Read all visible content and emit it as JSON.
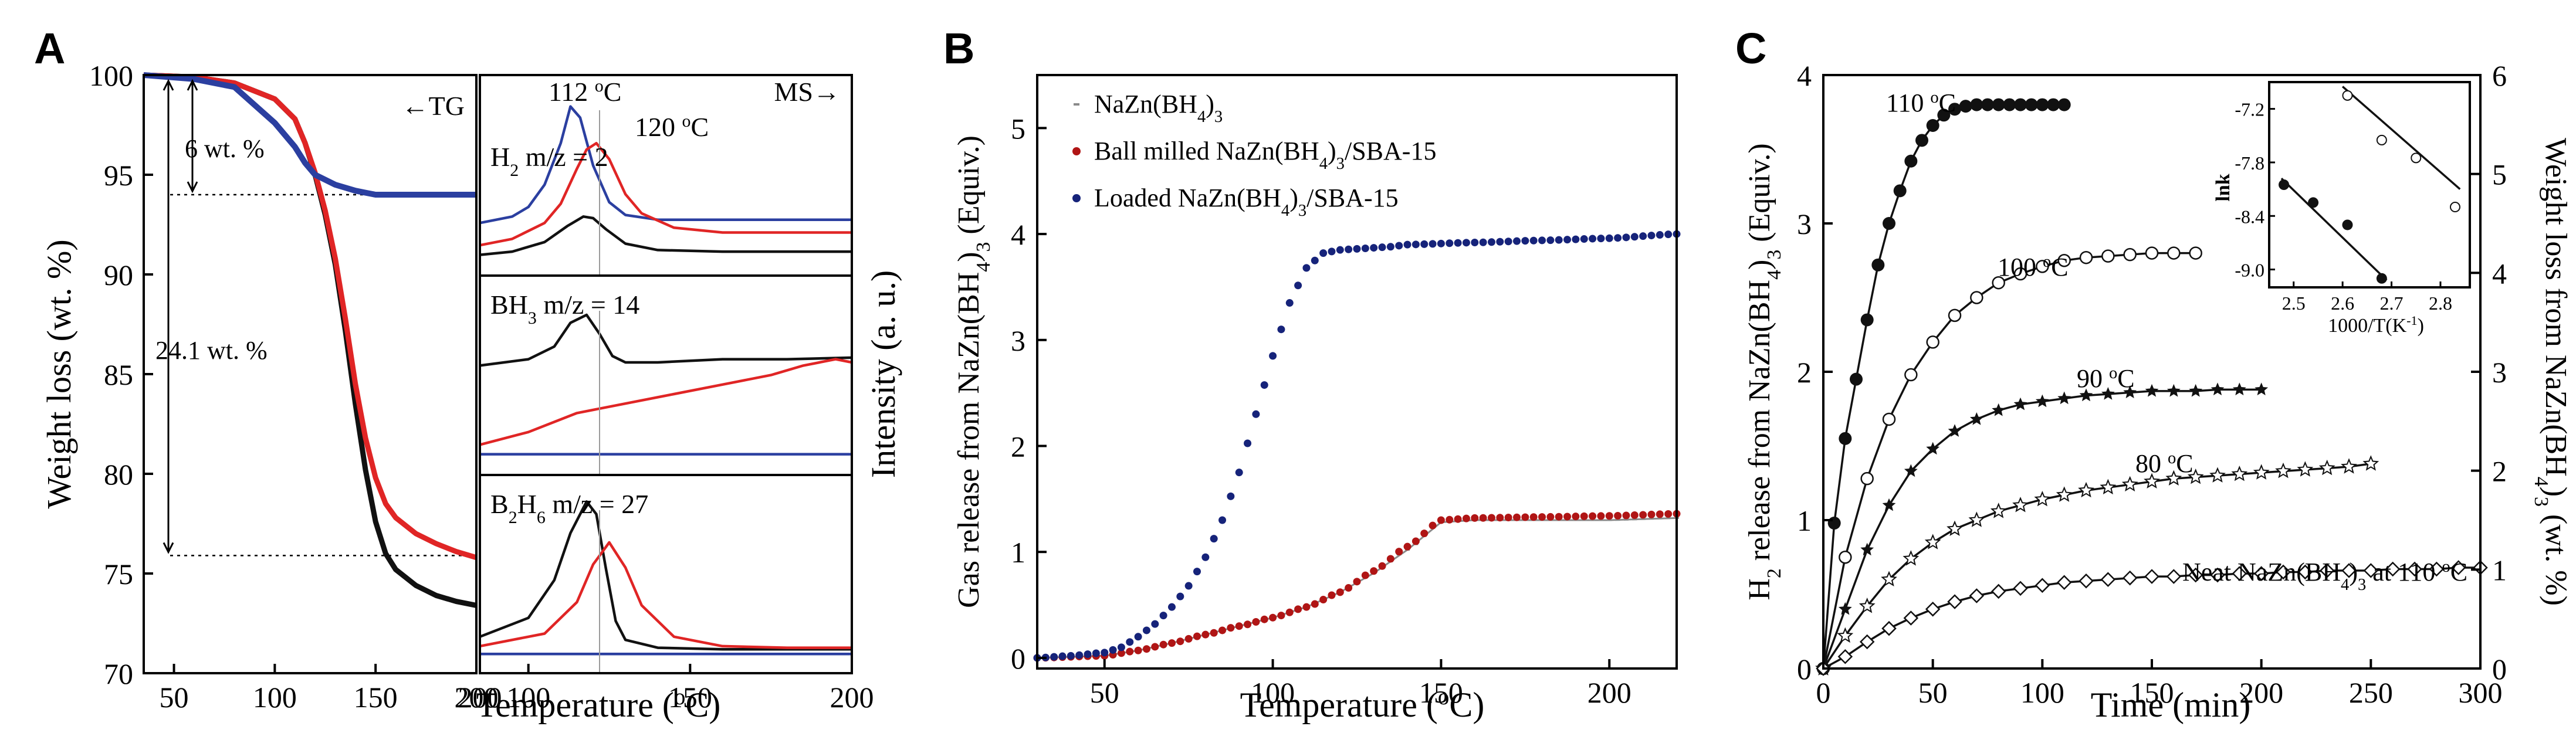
{
  "figure": {
    "panels": [
      "A",
      "B",
      "C"
    ]
  },
  "colors": {
    "black": "#111111",
    "red": "#e02525",
    "blue": "#2b3fa0",
    "navy": "#16237a",
    "darkred": "#b01515",
    "grey": "#8a8a8a"
  },
  "chart_data": [
    {
      "id": "A-TG",
      "type": "line",
      "ylabel": "Weight loss (wt. %)",
      "xlabel": "Temperature (°C)",
      "xlim": [
        35,
        200
      ],
      "ylim": [
        70,
        100
      ],
      "xticks": [
        "50",
        "100",
        "150",
        "200"
      ],
      "yticks": [
        "70",
        "75",
        "80",
        "85",
        "90",
        "95",
        "100"
      ],
      "corner_label": "←TG",
      "annotations": {
        "small": "6 wt. %",
        "large": "24.1 wt. %"
      },
      "guide_levels": [
        94,
        75.9
      ],
      "series": [
        {
          "name": "black",
          "color": "#111111",
          "x": [
            35,
            60,
            80,
            100,
            110,
            115,
            120,
            125,
            130,
            135,
            140,
            145,
            150,
            155,
            160,
            170,
            180,
            190,
            200
          ],
          "y": [
            100,
            99.9,
            99.6,
            98.8,
            97.8,
            96.6,
            95,
            93,
            90.5,
            87.2,
            83.5,
            80.2,
            77.6,
            76,
            75.2,
            74.4,
            73.9,
            73.6,
            73.4
          ]
        },
        {
          "name": "red",
          "color": "#e02525",
          "x": [
            35,
            60,
            80,
            100,
            110,
            115,
            120,
            125,
            130,
            135,
            140,
            145,
            150,
            155,
            160,
            170,
            180,
            190,
            200
          ],
          "y": [
            100,
            99.9,
            99.6,
            98.8,
            97.8,
            96.6,
            95.1,
            93.2,
            90.8,
            87.8,
            84.5,
            81.8,
            79.8,
            78.5,
            77.8,
            77,
            76.5,
            76.1,
            75.8
          ]
        },
        {
          "name": "blue",
          "color": "#2b3fa0",
          "x": [
            35,
            60,
            80,
            100,
            110,
            115,
            120,
            130,
            140,
            145,
            150,
            160,
            200
          ],
          "y": [
            100,
            99.8,
            99.4,
            97.6,
            96.4,
            95.6,
            95,
            94.5,
            94.2,
            94.1,
            94,
            94,
            94
          ]
        }
      ]
    },
    {
      "id": "A-MS",
      "type": "line",
      "ylabel": "Intensity (a. u.)",
      "corner_label": "MS→",
      "xlim": [
        85,
        200
      ],
      "xticks": [
        "100",
        "150",
        "200"
      ],
      "peak_labels": [
        "112 °C",
        "120 °C"
      ],
      "marker_x": 122,
      "subpanels": [
        {
          "label": "H2 m/z = 2",
          "series": [
            {
              "name": "blue",
              "color": "#2b3fa0",
              "x": [
                85,
                95,
                100,
                105,
                110,
                113,
                116,
                120,
                125,
                130,
                140,
                160,
                200
              ],
              "y": [
                0.22,
                0.26,
                0.32,
                0.46,
                0.72,
                0.95,
                0.88,
                0.58,
                0.35,
                0.27,
                0.24,
                0.24,
                0.24
              ]
            },
            {
              "name": "red",
              "color": "#e02525",
              "x": [
                85,
                95,
                105,
                110,
                115,
                118,
                121,
                125,
                130,
                135,
                145,
                160,
                200
              ],
              "y": [
                0.08,
                0.12,
                0.22,
                0.34,
                0.56,
                0.68,
                0.72,
                0.62,
                0.4,
                0.28,
                0.19,
                0.16,
                0.16
              ]
            },
            {
              "name": "black",
              "color": "#111111",
              "x": [
                85,
                95,
                105,
                112,
                117,
                120,
                124,
                130,
                140,
                160,
                200
              ],
              "y": [
                0.02,
                0.04,
                0.1,
                0.2,
                0.26,
                0.25,
                0.18,
                0.09,
                0.05,
                0.04,
                0.04
              ]
            }
          ]
        },
        {
          "label": "BH3 m/z = 14",
          "series": [
            {
              "name": "black",
              "color": "#111111",
              "x": [
                85,
                100,
                108,
                113,
                118,
                122,
                126,
                130,
                140,
                160,
                180,
                200
              ],
              "y": [
                0.58,
                0.62,
                0.7,
                0.85,
                0.9,
                0.78,
                0.64,
                0.6,
                0.6,
                0.62,
                0.62,
                0.63
              ]
            },
            {
              "name": "red",
              "color": "#e02525",
              "x": [
                85,
                100,
                115,
                130,
                145,
                160,
                175,
                185,
                195,
                200
              ],
              "y": [
                0.08,
                0.16,
                0.28,
                0.34,
                0.4,
                0.46,
                0.52,
                0.58,
                0.62,
                0.6
              ]
            },
            {
              "name": "blue",
              "color": "#2b3fa0",
              "x": [
                85,
                200
              ],
              "y": [
                0.02,
                0.02
              ]
            }
          ]
        },
        {
          "label": "B2H6 m/z = 27",
          "series": [
            {
              "name": "black",
              "color": "#111111",
              "x": [
                85,
                100,
                108,
                113,
                118,
                121,
                124,
                127,
                130,
                140,
                160,
                200
              ],
              "y": [
                0.12,
                0.24,
                0.48,
                0.78,
                0.98,
                0.9,
                0.55,
                0.22,
                0.1,
                0.05,
                0.04,
                0.04
              ]
            },
            {
              "name": "red",
              "color": "#e02525",
              "x": [
                85,
                105,
                115,
                120,
                125,
                130,
                135,
                145,
                160,
                180,
                200
              ],
              "y": [
                0.06,
                0.14,
                0.34,
                0.58,
                0.72,
                0.56,
                0.32,
                0.12,
                0.06,
                0.05,
                0.05
              ]
            },
            {
              "name": "blue",
              "color": "#2b3fa0",
              "x": [
                85,
                200
              ],
              "y": [
                0.01,
                0.01
              ]
            }
          ]
        }
      ]
    },
    {
      "id": "B",
      "type": "scatter",
      "ylabel": "Gas release from NaZn(BH4)3 (Equiv.)",
      "xlabel": "Temperature (°C)",
      "xlim": [
        30,
        220
      ],
      "ylim": [
        -0.1,
        5.5
      ],
      "xticks": [
        "50",
        "100",
        "150",
        "200"
      ],
      "yticks": [
        "0",
        "1",
        "2",
        "3",
        "4",
        "5"
      ],
      "legend": [
        "NaZn(BH4)3",
        "Ball milled NaZn(BH4)3/SBA-15",
        "Loaded NaZn(BH4)3/SBA-15"
      ],
      "series": [
        {
          "name": "NaZn(BH4)3",
          "color": "#8a8a8a",
          "x": [
            30,
            50,
            60,
            70,
            80,
            90,
            100,
            110,
            120,
            130,
            140,
            150,
            160,
            180,
            200,
            220
          ],
          "y": [
            0,
            0.02,
            0.07,
            0.14,
            0.22,
            0.3,
            0.38,
            0.48,
            0.62,
            0.8,
            1.02,
            1.28,
            1.3,
            1.3,
            1.3,
            1.32
          ]
        },
        {
          "name": "Ball milled NaZn(BH4)3/SBA-15",
          "color": "#b01515",
          "x": [
            30,
            50,
            60,
            70,
            80,
            90,
            100,
            110,
            120,
            130,
            140,
            150,
            160,
            180,
            200,
            220
          ],
          "y": [
            0,
            0.02,
            0.07,
            0.14,
            0.22,
            0.3,
            0.38,
            0.48,
            0.62,
            0.82,
            1.05,
            1.3,
            1.32,
            1.33,
            1.34,
            1.36
          ]
        },
        {
          "name": "Loaded NaZn(BH4)3/SBA-15",
          "color": "#16237a",
          "x": [
            30,
            40,
            50,
            55,
            60,
            65,
            70,
            75,
            80,
            85,
            90,
            95,
            100,
            105,
            110,
            115,
            120,
            125,
            130,
            135,
            140,
            160,
            180,
            200,
            220
          ],
          "y": [
            0,
            0.02,
            0.05,
            0.1,
            0.2,
            0.32,
            0.48,
            0.68,
            0.95,
            1.3,
            1.75,
            2.3,
            2.85,
            3.35,
            3.68,
            3.82,
            3.85,
            3.86,
            3.87,
            3.88,
            3.9,
            3.92,
            3.94,
            3.96,
            4.0
          ]
        }
      ]
    },
    {
      "id": "C",
      "type": "line",
      "ylabel": "H2 release from NaZn(BH4)3 (Equiv.)",
      "y2label": "Weight loss from NaZn(BH4)3 (wt. %)",
      "xlabel": "Time (min)",
      "xlim": [
        0,
        300
      ],
      "ylim": [
        0,
        4
      ],
      "y2lim": [
        0,
        6
      ],
      "xticks": [
        "0",
        "50",
        "100",
        "150",
        "200",
        "250",
        "300"
      ],
      "yticks": [
        "0",
        "1",
        "2",
        "3",
        "4"
      ],
      "y2ticks": [
        "0",
        "1",
        "2",
        "3",
        "4",
        "5",
        "6"
      ],
      "series": [
        {
          "name": "110 °C",
          "marker": "filled-circle",
          "x": [
            0,
            5,
            10,
            15,
            20,
            25,
            30,
            35,
            40,
            45,
            50,
            55,
            60,
            65,
            70,
            75,
            80,
            85,
            90,
            95,
            100,
            105,
            110
          ],
          "y": [
            0,
            0.98,
            1.55,
            1.95,
            2.35,
            2.72,
            3.0,
            3.22,
            3.42,
            3.56,
            3.66,
            3.73,
            3.77,
            3.79,
            3.8,
            3.8,
            3.8,
            3.8,
            3.8,
            3.8,
            3.8,
            3.8,
            3.8
          ]
        },
        {
          "name": "100 °C",
          "marker": "open-circle",
          "x": [
            0,
            10,
            20,
            30,
            40,
            50,
            60,
            70,
            80,
            90,
            100,
            110,
            120,
            130,
            140,
            150,
            160,
            170
          ],
          "y": [
            0,
            0.75,
            1.28,
            1.68,
            1.98,
            2.2,
            2.38,
            2.5,
            2.6,
            2.66,
            2.71,
            2.75,
            2.77,
            2.78,
            2.79,
            2.8,
            2.8,
            2.8
          ]
        },
        {
          "name": "90 °C",
          "marker": "filled-star",
          "x": [
            0,
            10,
            20,
            30,
            40,
            50,
            60,
            70,
            80,
            90,
            100,
            110,
            120,
            130,
            140,
            150,
            160,
            170,
            180,
            190,
            200
          ],
          "y": [
            0,
            0.4,
            0.8,
            1.1,
            1.33,
            1.48,
            1.6,
            1.68,
            1.74,
            1.78,
            1.8,
            1.82,
            1.84,
            1.85,
            1.86,
            1.87,
            1.87,
            1.87,
            1.88,
            1.88,
            1.88
          ]
        },
        {
          "name": "80 °C",
          "marker": "open-star",
          "x": [
            0,
            10,
            20,
            30,
            40,
            50,
            60,
            70,
            80,
            90,
            100,
            110,
            120,
            130,
            140,
            150,
            160,
            170,
            180,
            190,
            200,
            210,
            220,
            230,
            240,
            250
          ],
          "y": [
            0,
            0.22,
            0.42,
            0.6,
            0.74,
            0.85,
            0.94,
            1.0,
            1.06,
            1.1,
            1.14,
            1.17,
            1.2,
            1.22,
            1.24,
            1.26,
            1.28,
            1.29,
            1.3,
            1.31,
            1.32,
            1.33,
            1.34,
            1.35,
            1.36,
            1.38
          ]
        },
        {
          "name": "Neat NaZn(BH4)3 at 110 °C",
          "marker": "open-diamond",
          "x": [
            0,
            10,
            20,
            30,
            40,
            50,
            60,
            70,
            80,
            90,
            100,
            110,
            120,
            130,
            140,
            150,
            160,
            170,
            180,
            190,
            200,
            210,
            220,
            230,
            240,
            250,
            260,
            270,
            280,
            290,
            300
          ],
          "y": [
            0,
            0.08,
            0.18,
            0.27,
            0.34,
            0.4,
            0.45,
            0.49,
            0.52,
            0.54,
            0.56,
            0.58,
            0.59,
            0.6,
            0.61,
            0.62,
            0.62,
            0.63,
            0.63,
            0.64,
            0.64,
            0.65,
            0.65,
            0.66,
            0.66,
            0.66,
            0.67,
            0.67,
            0.67,
            0.68,
            0.68
          ]
        }
      ],
      "curve_labels": [
        "110 °C",
        "100 °C",
        "90 °C",
        "80 °C",
        "Neat NaZn(BH4)3 at 110 °C"
      ],
      "inset": {
        "type": "scatter",
        "ylabel": "lnk",
        "xlabel": "1000/T(K-1)",
        "xlim": [
          2.45,
          2.86
        ],
        "ylim": [
          -9.2,
          -6.9
        ],
        "xticks": [
          "2.5",
          "2.6",
          "2.7",
          "2.8"
        ],
        "yticks": [
          "-7.2",
          "-7.8",
          "-8.4",
          "-9.0"
        ],
        "series": [
          {
            "name": "filled",
            "x": [
              2.48,
              2.54,
              2.61,
              2.68
            ],
            "y": [
              -8.05,
              -8.25,
              -8.5,
              -9.1
            ]
          },
          {
            "name": "open",
            "x": [
              2.61,
              2.68,
              2.75,
              2.83
            ],
            "y": [
              -7.05,
              -7.55,
              -7.75,
              -8.3
            ]
          }
        ],
        "fits": [
          {
            "x": [
              2.475,
              2.69
            ],
            "y": [
              -7.98,
              -9.12
            ]
          },
          {
            "x": [
              2.6,
              2.84
            ],
            "y": [
              -6.95,
              -8.1
            ]
          }
        ]
      }
    }
  ]
}
